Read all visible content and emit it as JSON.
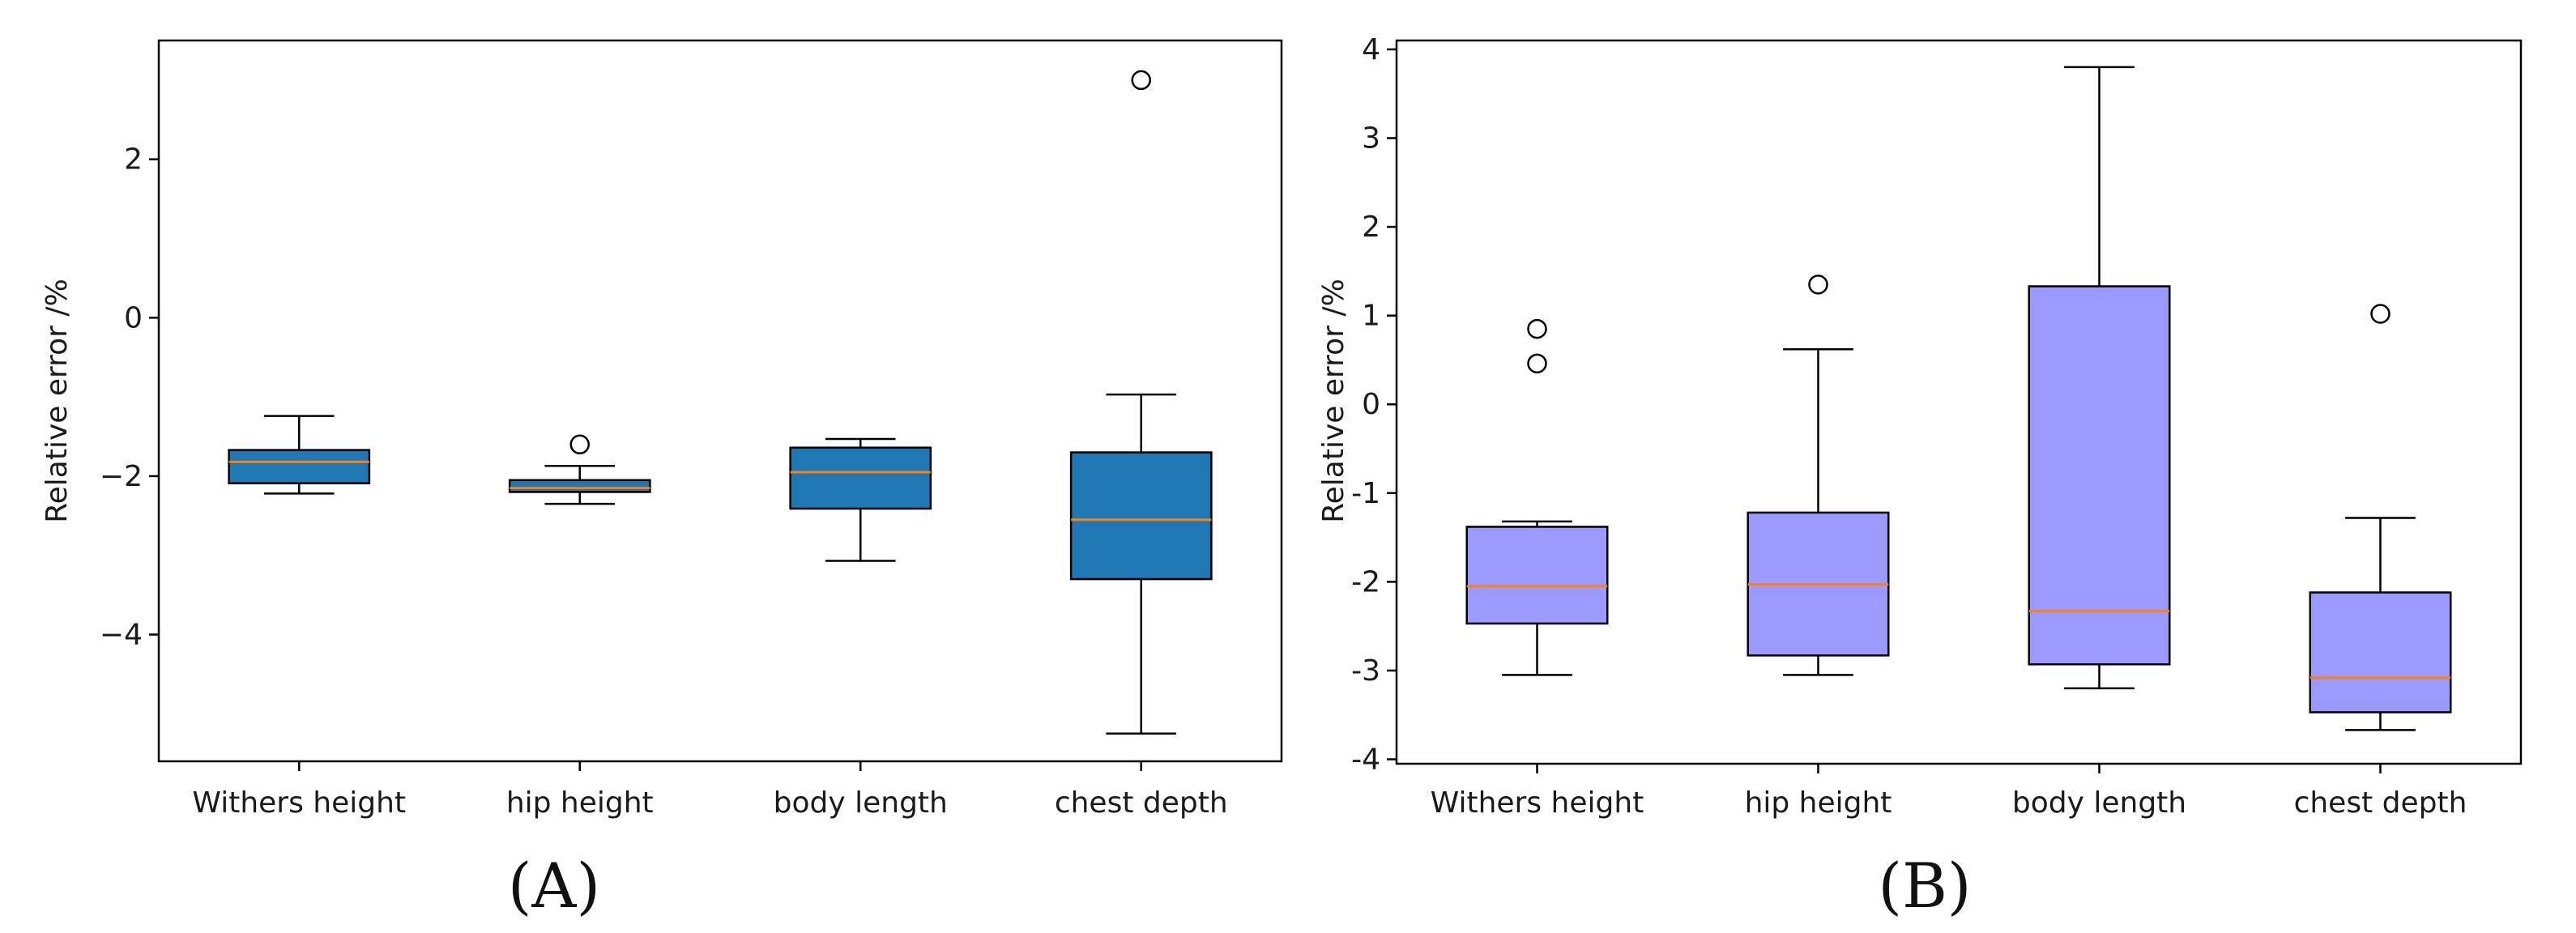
{
  "chart_data": [
    {
      "type": "boxplot",
      "panel_label": "(A)",
      "ylabel": "Relative error /%",
      "xlabel": "",
      "categories": [
        "Withers height",
        "hip height",
        "body length",
        "chest depth"
      ],
      "ylim": [
        -5.6,
        3.5
      ],
      "yticks": [
        2,
        0,
        -2,
        -4
      ],
      "ytick_labels": [
        "2",
        "0",
        "−2",
        "−4"
      ],
      "box_color": "#1f77b4",
      "median_color": "#ff7f0e",
      "boxes": [
        {
          "whisker_low": -2.22,
          "q1": -2.09,
          "median": -1.82,
          "q3": -1.67,
          "whisker_high": -1.24,
          "outliers": []
        },
        {
          "whisker_low": -2.35,
          "q1": -2.2,
          "median": -2.15,
          "q3": -2.05,
          "whisker_high": -1.87,
          "outliers": [
            -1.6
          ]
        },
        {
          "whisker_low": -3.07,
          "q1": -2.41,
          "median": -1.95,
          "q3": -1.64,
          "whisker_high": -1.53,
          "outliers": []
        },
        {
          "whisker_low": -5.25,
          "q1": -3.3,
          "median": -2.55,
          "q3": -1.7,
          "whisker_high": -0.97,
          "outliers": [
            3.0
          ]
        }
      ]
    },
    {
      "type": "boxplot",
      "panel_label": "(B)",
      "ylabel": "Relative error /%",
      "xlabel": "",
      "categories": [
        "Withers height",
        "hip height",
        "body length",
        "chest depth"
      ],
      "ylim": [
        -4.05,
        4.1
      ],
      "yticks": [
        4,
        3,
        2,
        1,
        0,
        -1,
        -2,
        -3,
        -4
      ],
      "ytick_labels": [
        "4",
        "3",
        "2",
        "1",
        "0",
        "-1",
        "-2",
        "-3",
        "-4"
      ],
      "box_color": "#9999ff",
      "median_color": "#ff7f0e",
      "boxes": [
        {
          "whisker_low": -3.05,
          "q1": -2.47,
          "median": -2.05,
          "q3": -1.38,
          "whisker_high": -1.32,
          "outliers": [
            0.85,
            0.46
          ]
        },
        {
          "whisker_low": -3.05,
          "q1": -2.83,
          "median": -2.03,
          "q3": -1.22,
          "whisker_high": 0.62,
          "outliers": [
            1.35
          ]
        },
        {
          "whisker_low": -3.2,
          "q1": -2.93,
          "median": -2.33,
          "q3": 1.33,
          "whisker_high": 3.8,
          "outliers": []
        },
        {
          "whisker_low": -3.67,
          "q1": -3.47,
          "median": -3.08,
          "q3": -2.12,
          "whisker_high": -1.28,
          "outliers": [
            1.02
          ]
        }
      ]
    }
  ]
}
